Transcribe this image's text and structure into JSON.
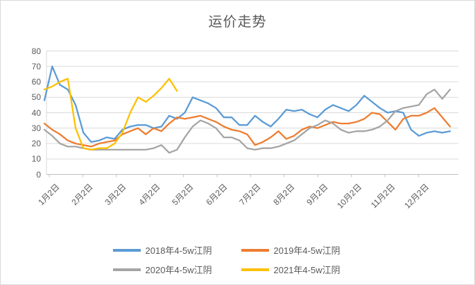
{
  "chart": {
    "title": "运价走势"
  },
  "chart_data": {
    "type": "line",
    "title": "运价走势",
    "legend_position": "bottom",
    "grid": true,
    "x_axis": {
      "tick_labels": [
        "1月2日",
        "2月2日",
        "3月2日",
        "4月2日",
        "5月2日",
        "6月2日",
        "7月2日",
        "8月2日",
        "9月2日",
        "10月2日",
        "11月2日",
        "12月2日"
      ],
      "sampling_note": "values sampled weekly starting 1月2日 (week 0) through 12月31日 (week 52)"
    },
    "y_axis": {
      "min": 0,
      "max": 80,
      "tick_step": 10,
      "ticks": [
        0,
        10,
        20,
        30,
        40,
        50,
        60,
        70,
        80
      ]
    },
    "series": [
      {
        "name": "2018年4-5w江阴",
        "color": "#5B9BD5",
        "values": [
          48,
          70,
          58,
          55,
          45,
          27,
          21,
          22,
          24,
          23,
          29,
          31,
          32,
          32,
          30,
          31,
          38,
          36,
          40,
          50,
          48,
          46,
          43,
          37,
          37,
          32,
          32,
          38,
          34,
          31,
          36,
          42,
          41,
          42,
          39,
          37,
          42,
          45,
          43,
          41,
          45,
          51,
          47,
          43,
          40,
          41,
          40,
          29,
          25,
          27,
          28,
          27,
          28
        ]
      },
      {
        "name": "2019年4-5w江阴",
        "color": "#ED7D31",
        "values": [
          33,
          29,
          26,
          22,
          20,
          19,
          18,
          20,
          21,
          22,
          26,
          28,
          30,
          26,
          30,
          28,
          33,
          37,
          36,
          37,
          38,
          36,
          34,
          31,
          29,
          28,
          26,
          19,
          21,
          24,
          28,
          23,
          25,
          29,
          31,
          30,
          32,
          34,
          33,
          33,
          34,
          36,
          40,
          39,
          34,
          29,
          36,
          38,
          38,
          40,
          43,
          37,
          31
        ]
      },
      {
        "name": "2020年4-5w江阴",
        "color": "#A5A5A5",
        "values": [
          29,
          25,
          20,
          18,
          18,
          17,
          16,
          16,
          16,
          16,
          16,
          16,
          16,
          16,
          17,
          19,
          14,
          16,
          24,
          31,
          35,
          33,
          30,
          24,
          24,
          22,
          17,
          16,
          17,
          17,
          18,
          20,
          22,
          26,
          30,
          32,
          35,
          33,
          29,
          27,
          28,
          28,
          29,
          31,
          35,
          41,
          43,
          44,
          45,
          52,
          55,
          49,
          55
        ]
      },
      {
        "name": "2021年4-5w江阴",
        "color": "#FFC000",
        "values": [
          55,
          57,
          60,
          62,
          30,
          17,
          16,
          17,
          17,
          20,
          27,
          40,
          50,
          47,
          51,
          56,
          62,
          54
        ]
      }
    ]
  },
  "style": {
    "text_color": "#595959",
    "grid_color": "#D9D9D9",
    "axis_color": "#BFBFBF",
    "background": "#FFFFFF",
    "border_color": "#D9D9D9"
  }
}
